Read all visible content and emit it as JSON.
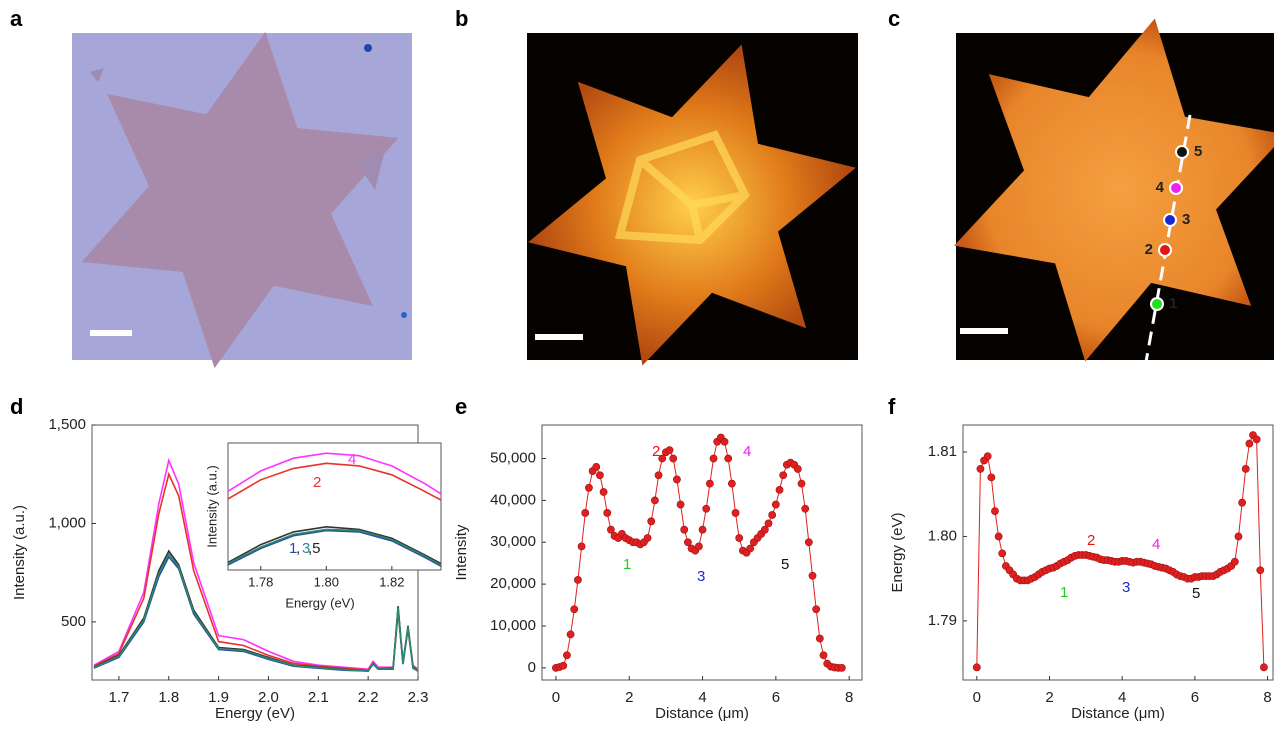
{
  "panels": {
    "labels": [
      "a",
      "b",
      "c",
      "d",
      "e",
      "f"
    ],
    "c_point_labels": [
      "1",
      "2",
      "3",
      "4",
      "5"
    ]
  },
  "chart_data": [
    {
      "type": "line",
      "xlabel": "Energy (eV)",
      "ylabel": "Intensity (a.u.)",
      "xlim": [
        1.646,
        2.3
      ],
      "xticks": [
        1.7,
        1.8,
        1.9,
        {
          "value": 2.0,
          "label": "2.0"
        },
        2.1,
        2.2,
        2.3
      ],
      "ylim": [
        205,
        1500
      ],
      "yticks": [
        500,
        {
          "value": 1000,
          "label": "1,000"
        },
        {
          "value": 1500,
          "label": "1,500"
        }
      ],
      "x": [
        1.65,
        1.7,
        1.75,
        1.78,
        1.8,
        1.82,
        1.85,
        1.9,
        1.95,
        2.0,
        2.05,
        2.1,
        2.15,
        2.2,
        2.21,
        2.22,
        2.25,
        2.26,
        2.27,
        2.28,
        2.29,
        2.3
      ],
      "series": [
        {
          "color": "#ff33ff",
          "values": [
            280,
            350,
            650,
            1100,
            1320,
            1200,
            800,
            430,
            410,
            350,
            300,
            280,
            270,
            260,
            300,
            270,
            270,
            560,
            300,
            470,
            280,
            260
          ]
        },
        {
          "color": "#e8322e",
          "values": [
            275,
            340,
            620,
            1050,
            1250,
            1140,
            760,
            400,
            380,
            330,
            290,
            275,
            265,
            255,
            290,
            265,
            265,
            550,
            295,
            460,
            275,
            255
          ]
        },
        {
          "color": "#333333",
          "values": [
            270,
            330,
            520,
            760,
            860,
            790,
            560,
            370,
            360,
            320,
            280,
            270,
            260,
            250,
            290,
            260,
            265,
            580,
            290,
            480,
            270,
            250
          ]
        },
        {
          "color": "#2a4aa8",
          "values": [
            265,
            320,
            500,
            730,
            830,
            770,
            540,
            360,
            350,
            310,
            275,
            265,
            255,
            250,
            285,
            260,
            260,
            560,
            285,
            470,
            265,
            250
          ]
        },
        {
          "color": "#2a8a6a",
          "values": [
            268,
            325,
            510,
            745,
            845,
            780,
            550,
            365,
            355,
            315,
            278,
            268,
            258,
            250,
            288,
            260,
            262,
            570,
            288,
            475,
            268,
            250
          ]
        }
      ]
    },
    {
      "type": "line",
      "xlabel": "Energy (eV)",
      "ylabel": "Intensity (a.u.)",
      "xlim": [
        1.77,
        1.835
      ],
      "xticks": [
        1.78,
        {
          "value": 1.8,
          "label": "1.80"
        },
        1.82
      ],
      "ylim": [
        0,
        1
      ],
      "x": [
        1.77,
        1.78,
        1.79,
        1.8,
        1.81,
        1.82,
        1.83,
        1.835
      ],
      "series": [
        {
          "color": "#ff33ff",
          "values": [
            0.62,
            0.78,
            0.88,
            0.92,
            0.9,
            0.82,
            0.68,
            0.6
          ]
        },
        {
          "color": "#e8322e",
          "values": [
            0.56,
            0.71,
            0.8,
            0.84,
            0.82,
            0.75,
            0.62,
            0.55
          ]
        },
        {
          "color": "#333333",
          "values": [
            0.06,
            0.2,
            0.3,
            0.34,
            0.32,
            0.25,
            0.12,
            0.05
          ]
        },
        {
          "color": "#2a4aa8",
          "values": [
            0.04,
            0.17,
            0.27,
            0.31,
            0.3,
            0.23,
            0.1,
            0.03
          ]
        },
        {
          "color": "#2a8a6a",
          "values": [
            0.05,
            0.18,
            0.28,
            0.32,
            0.31,
            0.24,
            0.11,
            0.04
          ]
        }
      ],
      "annotations": [
        {
          "text": "4",
          "color": "#ff33ff"
        },
        {
          "text": "2",
          "color": "#e8322e"
        },
        {
          "text": "1",
          "color": "#2a4aa8"
        },
        {
          "text": ",",
          "color": "#222222"
        },
        {
          "text": "3",
          "color": "#2a8a8a"
        },
        {
          "text": ",5",
          "color": "#222222"
        }
      ]
    },
    {
      "type": "line",
      "markers": true,
      "xlabel": "Distance (μm)",
      "ylabel": "Intensity",
      "xlim": [
        -0.38,
        8.35
      ],
      "xticks": [
        0,
        2,
        4,
        6,
        8
      ],
      "ylim": [
        -2900,
        58000
      ],
      "yticks": [
        0,
        {
          "value": 10000,
          "label": "10,000"
        },
        {
          "value": 20000,
          "label": "20,000"
        },
        {
          "value": 30000,
          "label": "30,000"
        },
        {
          "value": 40000,
          "label": "40,000"
        },
        {
          "value": 50000,
          "label": "50,000"
        }
      ],
      "x": [
        0,
        0.1,
        0.2,
        0.3,
        0.4,
        0.5,
        0.6,
        0.7,
        0.8,
        0.9,
        1.0,
        1.1,
        1.2,
        1.3,
        1.4,
        1.5,
        1.6,
        1.7,
        1.8,
        1.9,
        2.0,
        2.1,
        2.2,
        2.3,
        2.4,
        2.5,
        2.6,
        2.7,
        2.8,
        2.9,
        3.0,
        3.1,
        3.2,
        3.3,
        3.4,
        3.5,
        3.6,
        3.7,
        3.8,
        3.9,
        4.0,
        4.1,
        4.2,
        4.3,
        4.4,
        4.5,
        4.6,
        4.7,
        4.8,
        4.9,
        5.0,
        5.1,
        5.2,
        5.3,
        5.4,
        5.5,
        5.6,
        5.7,
        5.8,
        5.9,
        6.0,
        6.1,
        6.2,
        6.3,
        6.4,
        6.5,
        6.6,
        6.7,
        6.8,
        6.9,
        7.0,
        7.1,
        7.2,
        7.3,
        7.4,
        7.5,
        7.6,
        7.7,
        7.8
      ],
      "series": [
        {
          "color": "#e02020",
          "values": [
            0,
            200,
            500,
            3000,
            8000,
            14000,
            21000,
            29000,
            37000,
            43000,
            47000,
            48000,
            46000,
            42000,
            37000,
            33000,
            31500,
            31000,
            32000,
            31000,
            30500,
            30000,
            30000,
            29500,
            30000,
            31000,
            35000,
            40000,
            46000,
            50000,
            51500,
            52000,
            50000,
            45000,
            39000,
            33000,
            30000,
            28500,
            28000,
            29000,
            33000,
            38000,
            44000,
            50000,
            54000,
            55000,
            54000,
            50000,
            44000,
            37000,
            31000,
            28000,
            27500,
            28500,
            30000,
            31000,
            32000,
            33000,
            34500,
            36500,
            39000,
            42500,
            46000,
            48500,
            49000,
            48500,
            47500,
            44000,
            38000,
            30000,
            22000,
            14000,
            7000,
            3000,
            1000,
            300,
            100,
            0,
            0
          ]
        }
      ],
      "annotations": [
        {
          "text": "1",
          "color": "#22cc22"
        },
        {
          "text": "2",
          "color": "#ee1111"
        },
        {
          "text": "3",
          "color": "#1a2ad0"
        },
        {
          "text": "4",
          "color": "#ee22ee"
        },
        {
          "text": "5",
          "color": "#111111"
        }
      ]
    },
    {
      "type": "line",
      "markers": true,
      "xlabel": "Distance (μm)",
      "ylabel": "Energy (eV)",
      "xlim": [
        -0.38,
        8.15
      ],
      "xticks": [
        0,
        2,
        4,
        6,
        8
      ],
      "ylim": [
        1.783,
        1.8132
      ],
      "yticks": [
        1.79,
        {
          "value": 1.8,
          "label": "1.80"
        },
        1.81
      ],
      "x": [
        0,
        0.1,
        0.2,
        0.3,
        0.4,
        0.5,
        0.6,
        0.7,
        0.8,
        0.9,
        1.0,
        1.1,
        1.2,
        1.3,
        1.4,
        1.5,
        1.6,
        1.7,
        1.8,
        1.9,
        2.0,
        2.1,
        2.2,
        2.3,
        2.4,
        2.5,
        2.6,
        2.7,
        2.8,
        2.9,
        3.0,
        3.1,
        3.2,
        3.3,
        3.4,
        3.5,
        3.6,
        3.7,
        3.8,
        3.9,
        4.0,
        4.1,
        4.2,
        4.3,
        4.4,
        4.5,
        4.6,
        4.7,
        4.8,
        4.9,
        5.0,
        5.1,
        5.2,
        5.3,
        5.4,
        5.5,
        5.6,
        5.7,
        5.8,
        5.9,
        6.0,
        6.1,
        6.2,
        6.3,
        6.4,
        6.5,
        6.6,
        6.7,
        6.8,
        6.9,
        7.0,
        7.1,
        7.2,
        7.3,
        7.4,
        7.5,
        7.6,
        7.7,
        7.8,
        7.9
      ],
      "series": [
        {
          "color": "#e02020",
          "values": [
            1.7845,
            1.808,
            1.809,
            1.8095,
            1.807,
            1.803,
            1.8,
            1.798,
            1.7965,
            1.796,
            1.7955,
            1.795,
            1.7948,
            1.7948,
            1.7948,
            1.795,
            1.7952,
            1.7955,
            1.7958,
            1.796,
            1.7962,
            1.7963,
            1.7965,
            1.7968,
            1.797,
            1.7972,
            1.7975,
            1.7977,
            1.7978,
            1.7978,
            1.7978,
            1.7977,
            1.7976,
            1.7975,
            1.7973,
            1.7972,
            1.7972,
            1.7971,
            1.797,
            1.797,
            1.7971,
            1.7971,
            1.797,
            1.7969,
            1.797,
            1.797,
            1.7969,
            1.7968,
            1.7967,
            1.7965,
            1.7964,
            1.7963,
            1.7962,
            1.796,
            1.7958,
            1.7955,
            1.7953,
            1.7952,
            1.795,
            1.795,
            1.7952,
            1.7952,
            1.7953,
            1.7953,
            1.7953,
            1.7953,
            1.7955,
            1.7958,
            1.796,
            1.7962,
            1.7965,
            1.797,
            1.8,
            1.804,
            1.808,
            1.811,
            1.812,
            1.8115,
            1.796,
            1.7845
          ]
        }
      ],
      "annotations": [
        {
          "text": "1",
          "color": "#22cc22"
        },
        {
          "text": "2",
          "color": "#ee1111"
        },
        {
          "text": "3",
          "color": "#1a2ad0"
        },
        {
          "text": "4",
          "color": "#ee22ee"
        },
        {
          "text": "5",
          "color": "#111111"
        }
      ]
    }
  ]
}
